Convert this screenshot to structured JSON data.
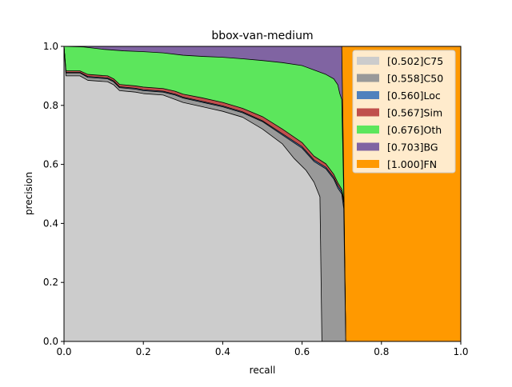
{
  "chart_data": {
    "type": "area",
    "title": "bbox-van-medium",
    "xlabel": "recall",
    "ylabel": "precision",
    "xlim": [
      0,
      1
    ],
    "ylim": [
      0,
      1
    ],
    "xticks": [
      "0.0",
      "0.2",
      "0.4",
      "0.6",
      "0.8",
      "1.0"
    ],
    "yticks": [
      "0.0",
      "0.2",
      "0.4",
      "0.6",
      "0.8",
      "1.0"
    ],
    "legend_position": "top-right",
    "grid": false,
    "series": [
      {
        "name": "[0.502]C75",
        "color": "#cccccc",
        "points": [
          [
            0,
            1.0
          ],
          [
            0.005,
            0.9
          ],
          [
            0.04,
            0.9
          ],
          [
            0.06,
            0.885
          ],
          [
            0.11,
            0.88
          ],
          [
            0.125,
            0.87
          ],
          [
            0.14,
            0.85
          ],
          [
            0.18,
            0.845
          ],
          [
            0.2,
            0.84
          ],
          [
            0.25,
            0.835
          ],
          [
            0.28,
            0.82
          ],
          [
            0.3,
            0.81
          ],
          [
            0.35,
            0.795
          ],
          [
            0.4,
            0.78
          ],
          [
            0.45,
            0.76
          ],
          [
            0.5,
            0.72
          ],
          [
            0.55,
            0.67
          ],
          [
            0.58,
            0.62
          ],
          [
            0.61,
            0.58
          ],
          [
            0.63,
            0.54
          ],
          [
            0.645,
            0.49
          ],
          [
            0.65,
            0.0
          ]
        ]
      },
      {
        "name": "[0.558]C50",
        "color": "#999999",
        "points": [
          [
            0,
            1.0
          ],
          [
            0.005,
            0.91
          ],
          [
            0.04,
            0.91
          ],
          [
            0.06,
            0.895
          ],
          [
            0.11,
            0.89
          ],
          [
            0.125,
            0.88
          ],
          [
            0.14,
            0.86
          ],
          [
            0.18,
            0.855
          ],
          [
            0.2,
            0.85
          ],
          [
            0.25,
            0.845
          ],
          [
            0.28,
            0.835
          ],
          [
            0.3,
            0.825
          ],
          [
            0.35,
            0.81
          ],
          [
            0.4,
            0.795
          ],
          [
            0.45,
            0.775
          ],
          [
            0.5,
            0.745
          ],
          [
            0.55,
            0.7
          ],
          [
            0.6,
            0.655
          ],
          [
            0.63,
            0.61
          ],
          [
            0.66,
            0.585
          ],
          [
            0.68,
            0.55
          ],
          [
            0.69,
            0.52
          ],
          [
            0.7,
            0.5
          ],
          [
            0.705,
            0.45
          ],
          [
            0.71,
            0.0
          ]
        ]
      },
      {
        "name": "[0.560]Loc",
        "color": "#4f81bd",
        "points": [
          [
            0,
            1.0
          ],
          [
            0.005,
            0.912
          ],
          [
            0.04,
            0.912
          ],
          [
            0.06,
            0.898
          ],
          [
            0.11,
            0.893
          ],
          [
            0.125,
            0.883
          ],
          [
            0.14,
            0.863
          ],
          [
            0.18,
            0.858
          ],
          [
            0.2,
            0.853
          ],
          [
            0.25,
            0.848
          ],
          [
            0.28,
            0.838
          ],
          [
            0.3,
            0.828
          ],
          [
            0.35,
            0.813
          ],
          [
            0.4,
            0.798
          ],
          [
            0.45,
            0.778
          ],
          [
            0.5,
            0.748
          ],
          [
            0.55,
            0.704
          ],
          [
            0.6,
            0.66
          ],
          [
            0.63,
            0.615
          ],
          [
            0.66,
            0.59
          ],
          [
            0.68,
            0.556
          ],
          [
            0.69,
            0.528
          ],
          [
            0.7,
            0.508
          ],
          [
            0.705,
            0.47
          ],
          [
            0.71,
            0.0
          ]
        ]
      },
      {
        "name": "[0.567]Sim",
        "color": "#c0504d",
        "points": [
          [
            0,
            1.0
          ],
          [
            0.005,
            0.917
          ],
          [
            0.04,
            0.917
          ],
          [
            0.06,
            0.905
          ],
          [
            0.11,
            0.9
          ],
          [
            0.125,
            0.89
          ],
          [
            0.14,
            0.871
          ],
          [
            0.18,
            0.866
          ],
          [
            0.2,
            0.862
          ],
          [
            0.25,
            0.857
          ],
          [
            0.28,
            0.848
          ],
          [
            0.3,
            0.838
          ],
          [
            0.35,
            0.825
          ],
          [
            0.4,
            0.81
          ],
          [
            0.45,
            0.79
          ],
          [
            0.5,
            0.762
          ],
          [
            0.55,
            0.72
          ],
          [
            0.6,
            0.674
          ],
          [
            0.63,
            0.628
          ],
          [
            0.66,
            0.602
          ],
          [
            0.68,
            0.566
          ],
          [
            0.69,
            0.538
          ],
          [
            0.7,
            0.516
          ],
          [
            0.705,
            0.48
          ],
          [
            0.71,
            0.0
          ]
        ]
      },
      {
        "name": "[0.676]Oth",
        "color": "#5ce65c",
        "points": [
          [
            0,
            1.0
          ],
          [
            0.05,
            0.998
          ],
          [
            0.1,
            0.99
          ],
          [
            0.15,
            0.985
          ],
          [
            0.2,
            0.982
          ],
          [
            0.25,
            0.978
          ],
          [
            0.3,
            0.97
          ],
          [
            0.35,
            0.966
          ],
          [
            0.4,
            0.963
          ],
          [
            0.45,
            0.958
          ],
          [
            0.5,
            0.952
          ],
          [
            0.55,
            0.945
          ],
          [
            0.6,
            0.935
          ],
          [
            0.63,
            0.92
          ],
          [
            0.66,
            0.905
          ],
          [
            0.68,
            0.89
          ],
          [
            0.69,
            0.87
          ],
          [
            0.695,
            0.84
          ],
          [
            0.7,
            0.82
          ],
          [
            0.705,
            0.5
          ],
          [
            0.71,
            0.0
          ]
        ]
      },
      {
        "name": "[0.703]BG",
        "color": "#8064a2",
        "points": [
          [
            0,
            1.0
          ],
          [
            0.7,
            1.0
          ],
          [
            0.705,
            0.55
          ],
          [
            0.71,
            0.0
          ]
        ]
      },
      {
        "name": "[1.000]FN",
        "color": "#ff9900",
        "points": [
          [
            0,
            1.0
          ],
          [
            1.0,
            1.0
          ]
        ]
      }
    ]
  }
}
